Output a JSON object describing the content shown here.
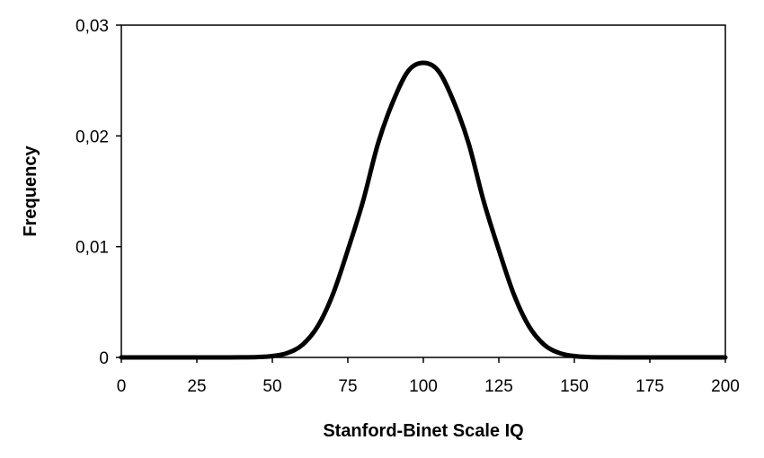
{
  "chart_data": {
    "type": "line",
    "title": "",
    "xlabel": "Stanford-Binet Scale IQ",
    "ylabel": "Frequency",
    "xlim": [
      0,
      200
    ],
    "ylim": [
      0,
      0.03
    ],
    "x_ticks": [
      0,
      25,
      50,
      75,
      100,
      125,
      150,
      175,
      200
    ],
    "x_tick_labels": [
      "0",
      "25",
      "50",
      "75",
      "100",
      "125",
      "150",
      "175",
      "200"
    ],
    "y_ticks": [
      0,
      0.01,
      0.02,
      0.03
    ],
    "y_tick_labels": [
      "0",
      "0,01",
      "0,02",
      "0,03"
    ],
    "grid": false,
    "legend": "none",
    "line_color": "#000000",
    "series": [
      {
        "x": [
          0,
          10,
          20,
          30,
          40,
          45,
          50,
          55,
          60,
          65,
          70,
          75,
          80,
          85,
          90,
          95,
          100,
          105,
          110,
          115,
          120,
          125,
          130,
          135,
          140,
          145,
          150,
          155,
          160,
          170,
          180,
          190,
          200
        ],
        "values": [
          0,
          0,
          0,
          0,
          1e-05,
          3e-05,
          0.00012,
          0.0004,
          0.00115,
          0.0028,
          0.00567,
          0.0097,
          0.01408,
          0.01932,
          0.02313,
          0.02586,
          0.02659,
          0.02586,
          0.02313,
          0.01932,
          0.01408,
          0.0097,
          0.00567,
          0.0028,
          0.00115,
          0.0004,
          0.00012,
          3e-05,
          1e-05,
          0,
          0,
          0,
          0
        ]
      }
    ]
  }
}
